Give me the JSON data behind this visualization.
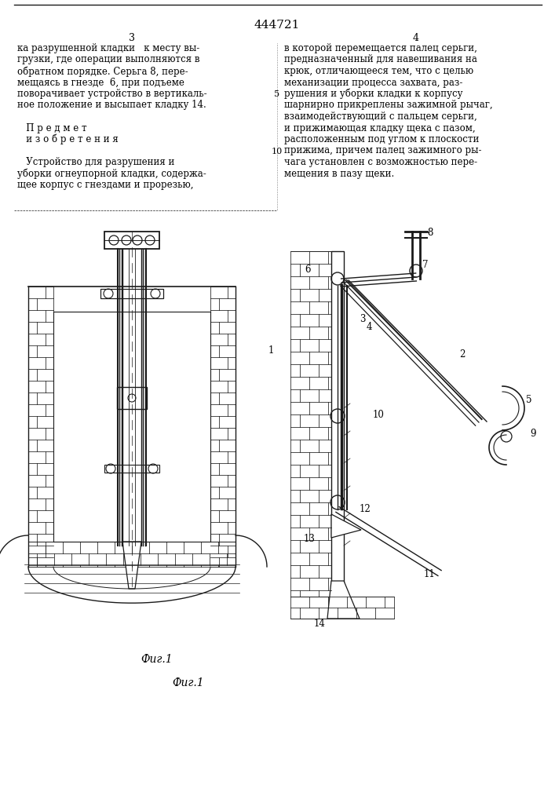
{
  "title": "444721",
  "fig_label": "Фиг.1",
  "page_num_left": "3",
  "page_num_right": "4",
  "bg_color": "#ffffff",
  "line_color": "#1a1a1a",
  "text_color": "#000000",
  "left_text_lines": [
    "ка разрушенной кладки   к месту вы-",
    "грузки, где операции выполняются в",
    "обратном порядке. Серьга 8, пере-",
    "мещаясь в гнезде  6, при подъеме",
    "поворачивает устройство в вертикаль-",
    "ное положение и высыпает кладку 14.",
    "",
    "   П р е д м е т",
    "   и з о б р е т е н и я",
    "",
    "   Устройство для разрушения и",
    "уборки огнеупорной кладки, содержа-",
    "щее корпус с гнездами и прорезью,"
  ],
  "right_text_lines": [
    "в которой перемещается палец серьги,",
    "предназначенный для навешивания на",
    "крюк, отличающееся тем, что с целью",
    "механизации процесса захвата, раз-",
    "рушения и уборки кладки к корпусу",
    "шарнирно прикреплены зажимной рычаг,",
    "взаимодействующий с пальцем серьги,",
    "и прижимающая кладку щека с пазом,",
    "расположенным под углом к плоскости",
    "прижима, причем палец зажимного ры-",
    "чага установлен с возможностью пере-",
    "мещения в пазу щеки."
  ]
}
